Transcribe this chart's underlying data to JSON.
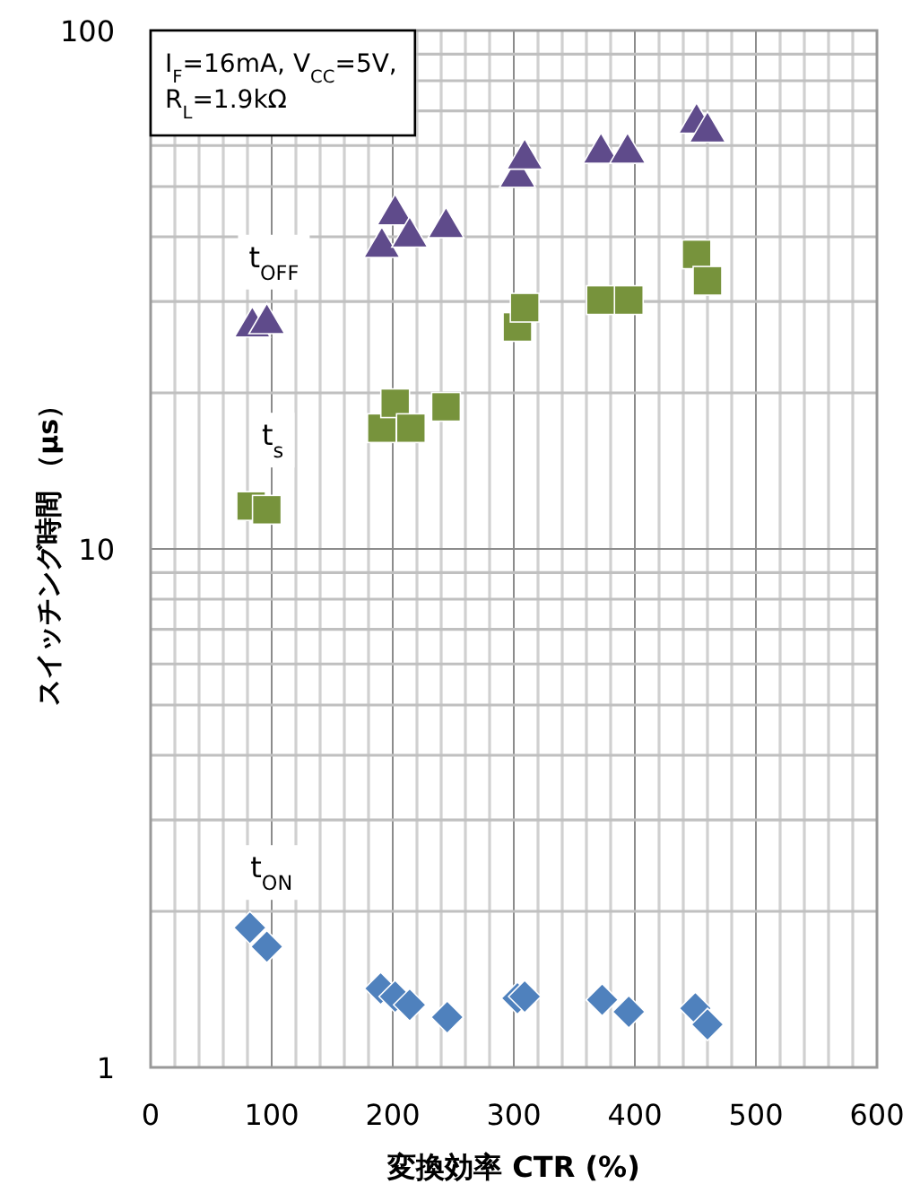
{
  "chart_data": {
    "type": "scatter",
    "xlabel": "変換効率  CTR (%)",
    "ylabel": "スイッチング時間 （μs）",
    "annotations": [
      "I$_{F}$=16mA, V$_{CC}$=5V,",
      "R$_{L}$=1.9kΩ"
    ],
    "xlim": [
      0,
      600
    ],
    "xticks": [
      0,
      100,
      200,
      300,
      400,
      500,
      600
    ],
    "ylim": [
      1,
      100
    ],
    "yticks": [
      1,
      10,
      100
    ],
    "log": "y",
    "grid": true,
    "series": [
      {
        "name": "t$_{OFF}$",
        "color": "#5f4b8b",
        "marker": "triangle",
        "x": [
          84,
          96,
          191,
          202,
          214,
          244,
          303,
          309,
          372,
          394,
          451,
          460
        ],
        "values": [
          27.1,
          27.5,
          38.6,
          44.6,
          40.4,
          42.1,
          52.7,
          57.1,
          58.6,
          58.6,
          67.0,
          64.4
        ]
      },
      {
        "name": "t$_{s}$",
        "color": "#77933c",
        "marker": "square",
        "x": [
          83,
          96,
          191,
          202,
          215,
          244,
          303,
          309,
          372,
          395,
          451,
          460
        ],
        "values": [
          12.1,
          11.9,
          17.1,
          19.1,
          17.1,
          18.8,
          26.8,
          29.2,
          30.2,
          30.2,
          37.0,
          32.9
        ]
      },
      {
        "name": "t$_{ON}$",
        "color": "#4f81bd",
        "marker": "diamond",
        "x": [
          82,
          96,
          190,
          202,
          214,
          245,
          303,
          309,
          373,
          395,
          450,
          460
        ],
        "values": [
          1.86,
          1.71,
          1.42,
          1.37,
          1.32,
          1.25,
          1.36,
          1.37,
          1.35,
          1.28,
          1.3,
          1.21
        ]
      }
    ]
  }
}
